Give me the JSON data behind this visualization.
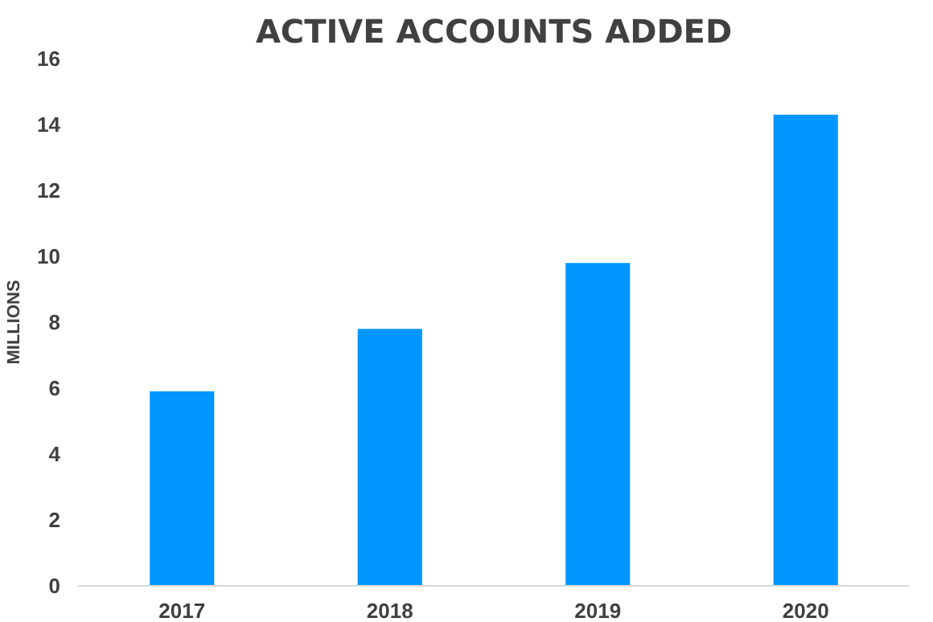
{
  "chart_data": {
    "type": "bar",
    "title": "ACTIVE ACCOUNTS ADDED",
    "ylabel": "MILLIONS",
    "categories": [
      "2017",
      "2018",
      "2019",
      "2020"
    ],
    "values": [
      5.9,
      7.8,
      9.8,
      14.3
    ],
    "color": "#0096ff",
    "ylim": [
      0,
      16
    ],
    "yticks": [
      0,
      2,
      4,
      6,
      8,
      10,
      12,
      14,
      16
    ],
    "grid": false
  }
}
